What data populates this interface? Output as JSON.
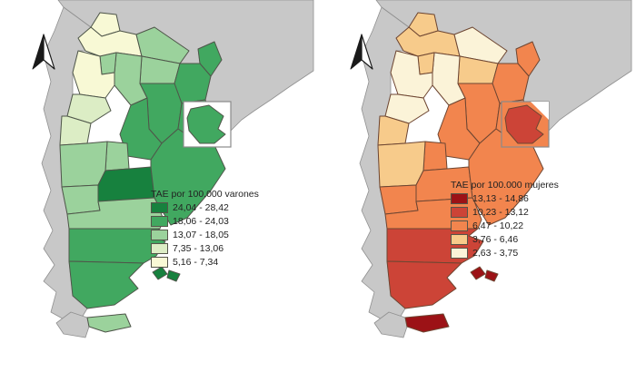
{
  "figure": {
    "type": "choropleth-map-pair",
    "region": "Argentina",
    "ocean_color": "#ffffff",
    "neighbor_fill": "#c8c8c8",
    "neighbor_stroke": "#909090",
    "icons": {
      "north_arrow": "north-arrow-icon"
    }
  },
  "panels": [
    {
      "id": "varones",
      "legend": {
        "title": "TAE por 100.000 varones",
        "entries": [
          {
            "label": "24,04 - 28,42",
            "color": "#17813e"
          },
          {
            "label": "18,06 - 24,03",
            "color": "#41a860"
          },
          {
            "label": "13,07 - 18,05",
            "color": "#9bd29c"
          },
          {
            "label": "7,35 - 13,06",
            "color": "#dcedc5"
          },
          {
            "label": "5,16 - 7,34",
            "color": "#f8f9d5"
          }
        ]
      },
      "border_color": "#4f564a",
      "inset_bg_class": 0,
      "province_classes": {
        "jujuy": 5,
        "salta": 5,
        "formosa": 3,
        "chaco": 3,
        "misiones": 2,
        "corrientes": 2,
        "santiago_del_estero": 3,
        "tucuman": 3,
        "catamarca": 5,
        "la_rioja": 4,
        "san_juan": 4,
        "santa_fe": 2,
        "entre_rios": 2,
        "cordoba": 2,
        "san_luis": 3,
        "mendoza": 3,
        "la_pampa": 1,
        "buenos_aires": 2,
        "neuquen": 3,
        "rio_negro": 3,
        "chubut": 2,
        "santa_cruz": 2,
        "tierra_del_fuego": 3,
        "malvinas_oeste": 1,
        "malvinas_este": 1,
        "caba_inset": 2
      }
    },
    {
      "id": "mujeres",
      "legend": {
        "title": "TAE por 100.000 mujeres",
        "entries": [
          {
            "label": "13,13 - 14,86",
            "color": "#9c1216"
          },
          {
            "label": "10,23 - 13,12",
            "color": "#cc4437"
          },
          {
            "label": "6,47 - 10,22",
            "color": "#f2854e"
          },
          {
            "label": "3,76 - 6,46",
            "color": "#f7cb8b"
          },
          {
            "label": "2,63 - 3,75",
            "color": "#fbf3d8"
          }
        ]
      },
      "border_color": "#6e4632",
      "inset_bg_class": 3,
      "province_classes": {
        "jujuy": 4,
        "salta": 4,
        "formosa": 5,
        "chaco": 4,
        "misiones": 3,
        "corrientes": 3,
        "santiago_del_estero": 5,
        "tucuman": 4,
        "catamarca": 5,
        "la_rioja": 5,
        "san_juan": 4,
        "santa_fe": 3,
        "entre_rios": 3,
        "cordoba": 3,
        "san_luis": 3,
        "mendoza": 4,
        "la_pampa": 3,
        "buenos_aires": 3,
        "neuquen": 3,
        "rio_negro": 3,
        "chubut": 2,
        "santa_cruz": 2,
        "tierra_del_fuego": 1,
        "malvinas_oeste": 1,
        "malvinas_este": 1,
        "caba_inset": 2
      }
    }
  ]
}
